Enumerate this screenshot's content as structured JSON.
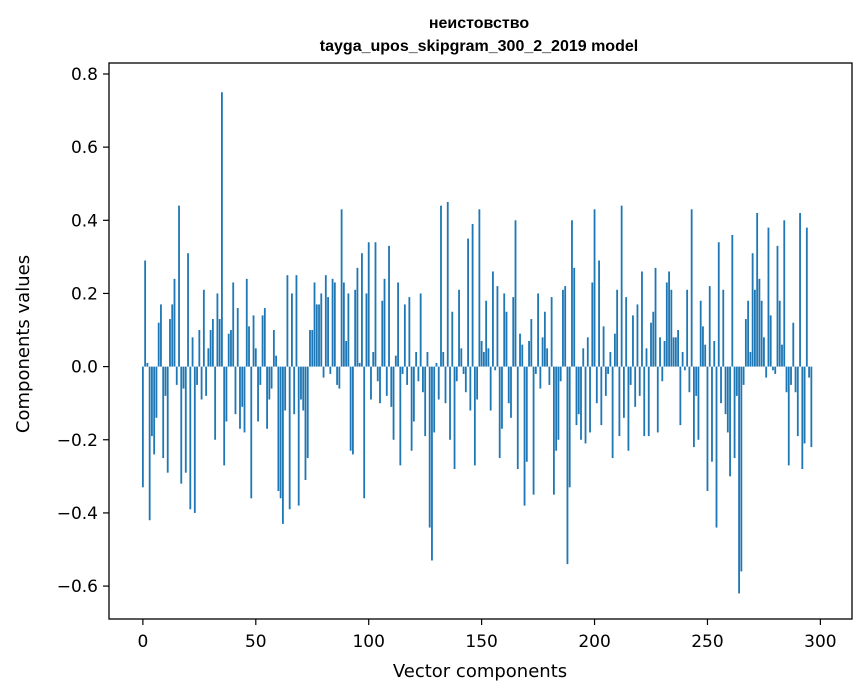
{
  "chart_data": {
    "type": "bar",
    "title": "неистовство",
    "subtitle": "tayga_upos_skipgram_300_2_2019 model",
    "xlabel": "Vector components",
    "ylabel": "Components values",
    "xlim": [
      -15,
      314
    ],
    "ylim": [
      -0.69,
      0.83
    ],
    "x_ticks": [
      0,
      50,
      100,
      150,
      200,
      250,
      300
    ],
    "x_tick_labels": [
      "0",
      "50",
      "100",
      "150",
      "200",
      "250",
      "300"
    ],
    "y_ticks": [
      -0.6,
      -0.4,
      -0.2,
      0.0,
      0.2,
      0.4,
      0.6,
      0.8
    ],
    "y_tick_labels": [
      "−0.6",
      "−0.4",
      "−0.2",
      "0.0",
      "0.2",
      "0.4",
      "0.6",
      "0.8"
    ],
    "bar_color": "#1f77b4",
    "grid": false,
    "legend": "none",
    "values": [
      -0.33,
      0.29,
      0.01,
      -0.42,
      -0.19,
      -0.24,
      -0.14,
      0.12,
      0.17,
      -0.25,
      -0.08,
      -0.29,
      0.13,
      0.17,
      0.24,
      -0.05,
      0.44,
      -0.32,
      -0.06,
      -0.29,
      0.31,
      -0.39,
      0.08,
      -0.4,
      -0.05,
      0.1,
      -0.09,
      0.21,
      -0.08,
      0.05,
      0.1,
      0.13,
      -0.2,
      0.2,
      0.13,
      0.75,
      -0.27,
      -0.15,
      0.09,
      0.1,
      0.23,
      -0.13,
      0.16,
      -0.17,
      -0.11,
      -0.18,
      0.24,
      0.11,
      -0.36,
      0.14,
      0.05,
      -0.15,
      -0.05,
      0.14,
      0.16,
      -0.17,
      -0.09,
      -0.06,
      0.1,
      0.03,
      -0.34,
      -0.36,
      -0.43,
      -0.12,
      0.25,
      -0.39,
      0.2,
      -0.13,
      0.25,
      -0.38,
      -0.09,
      -0.12,
      -0.31,
      -0.25,
      0.1,
      0.1,
      0.23,
      0.17,
      0.17,
      0.2,
      -0.03,
      0.25,
      0.19,
      -0.02,
      0.24,
      0.23,
      -0.05,
      -0.06,
      0.43,
      0.23,
      0.07,
      0.2,
      -0.23,
      -0.24,
      0.21,
      0.27,
      0.01,
      0.31,
      -0.36,
      0.2,
      0.34,
      -0.09,
      0.04,
      0.34,
      -0.04,
      -0.1,
      0.18,
      0.24,
      -0.08,
      0.33,
      -0.11,
      -0.2,
      0.03,
      0.23,
      -0.27,
      -0.02,
      0.17,
      -0.05,
      0.19,
      -0.23,
      -0.15,
      0.04,
      -0.04,
      0.2,
      -0.07,
      -0.19,
      0.04,
      -0.44,
      -0.53,
      -0.18,
      0.01,
      -0.09,
      0.44,
      0.04,
      -0.1,
      0.45,
      -0.2,
      0.15,
      -0.28,
      -0.04,
      0.21,
      0.05,
      -0.02,
      -0.07,
      0.35,
      -0.12,
      0.39,
      -0.27,
      -0.09,
      0.43,
      0.07,
      0.04,
      0.18,
      0.05,
      -0.12,
      0.26,
      -0.01,
      0.22,
      -0.25,
      -0.17,
      0.2,
      0.15,
      -0.1,
      -0.14,
      0.19,
      0.4,
      -0.28,
      0.09,
      0.06,
      -0.38,
      -0.26,
      0.07,
      0.13,
      -0.35,
      -0.02,
      0.2,
      -0.06,
      0.08,
      0.15,
      0.05,
      -0.05,
      0.19,
      -0.35,
      -0.23,
      -0.2,
      -0.04,
      0.21,
      0.22,
      -0.54,
      -0.33,
      0.4,
      0.27,
      -0.16,
      -0.13,
      -0.2,
      0.05,
      -0.21,
      0.08,
      -0.18,
      0.23,
      0.43,
      -0.1,
      0.29,
      -0.16,
      0.11,
      -0.08,
      -0.02,
      0.04,
      -0.25,
      0.09,
      0.21,
      -0.19,
      0.44,
      -0.14,
      0.19,
      -0.23,
      -0.05,
      0.14,
      -0.11,
      0.17,
      -0.08,
      0.26,
      -0.19,
      0.05,
      -0.19,
      0.12,
      0.15,
      0.27,
      -0.18,
      0.08,
      -0.04,
      0.07,
      0.23,
      0.26,
      0.21,
      0.08,
      0.08,
      0.1,
      -0.16,
      0.04,
      -0.01,
      0.21,
      -0.07,
      0.43,
      -0.22,
      -0.08,
      -0.2,
      0.18,
      0.11,
      0.06,
      -0.34,
      0.22,
      -0.26,
      0.07,
      -0.44,
      0.34,
      -0.1,
      0.21,
      -0.13,
      -0.18,
      -0.3,
      0.36,
      -0.25,
      -0.08,
      -0.62,
      -0.56,
      -0.05,
      0.13,
      0.18,
      0.04,
      0.31,
      0.21,
      0.42,
      0.24,
      0.18,
      0.08,
      -0.03,
      0.38,
      0.14,
      -0.01,
      -0.02,
      0.33,
      0.18,
      0.06,
      0.4,
      -0.07,
      -0.27,
      -0.05,
      0.12,
      -0.07,
      -0.19,
      0.42,
      -0.28,
      -0.21,
      0.38,
      -0.03,
      -0.22
    ]
  }
}
